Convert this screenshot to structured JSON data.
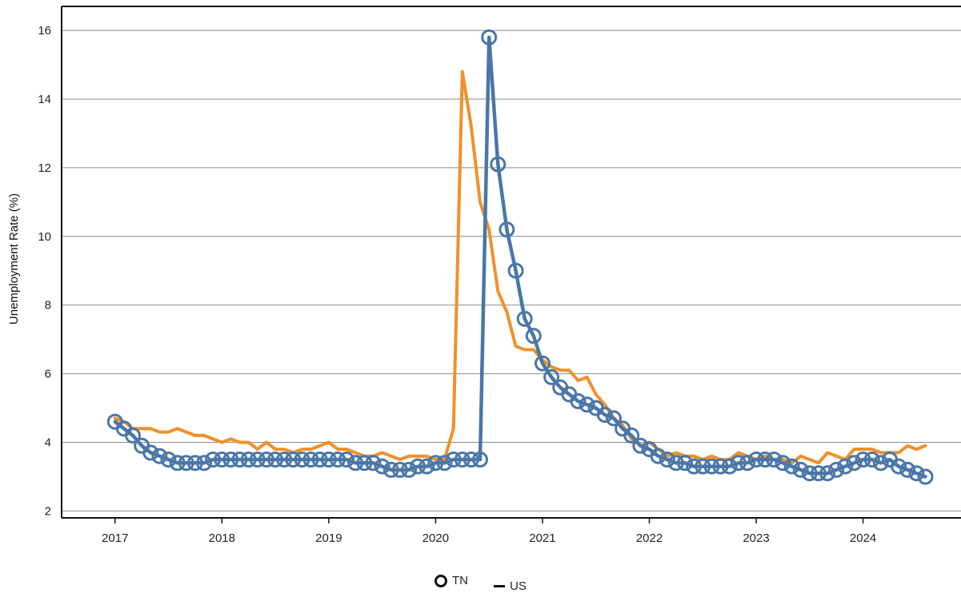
{
  "chart_data": {
    "type": "line",
    "title": "",
    "xlabel": "",
    "ylabel": "Unemployment Rate (%)",
    "ylim": [
      1.8,
      16.7
    ],
    "yticks": [
      2,
      4,
      6,
      8,
      10,
      12,
      14,
      16
    ],
    "x_tick_labels": [
      "2017",
      "2018",
      "2019",
      "2020",
      "2021",
      "2022",
      "2023",
      "2024"
    ],
    "x_range": [
      "2016-07",
      "2024-12"
    ],
    "grid": "horizontal",
    "legend_position": "bottom",
    "legend": [
      "TN",
      "US"
    ],
    "x_start": "2017-01",
    "x_step": "month",
    "series": [
      {
        "name": "TN",
        "color": "#4a76a8",
        "marker": "circle",
        "values": [
          4.6,
          4.4,
          4.2,
          3.9,
          3.7,
          3.6,
          3.5,
          3.4,
          3.4,
          3.4,
          3.4,
          3.5,
          3.5,
          3.5,
          3.5,
          3.5,
          3.5,
          3.5,
          3.5,
          3.5,
          3.5,
          3.5,
          3.5,
          3.5,
          3.5,
          3.5,
          3.5,
          3.4,
          3.4,
          3.4,
          3.3,
          3.2,
          3.2,
          3.2,
          3.3,
          3.3,
          3.4,
          3.4,
          3.5,
          3.5,
          3.5,
          3.5,
          15.8,
          12.1,
          10.2,
          9.0,
          7.6,
          7.1,
          6.3,
          5.9,
          5.6,
          5.4,
          5.2,
          5.1,
          5.0,
          4.8,
          4.7,
          4.4,
          4.2,
          3.9,
          3.8,
          3.6,
          3.5,
          3.4,
          3.4,
          3.3,
          3.3,
          3.3,
          3.3,
          3.3,
          3.4,
          3.4,
          3.5,
          3.5,
          3.5,
          3.4,
          3.3,
          3.2,
          3.1,
          3.1,
          3.1,
          3.2,
          3.3,
          3.4,
          3.5,
          3.5,
          3.4,
          3.5,
          3.3,
          3.2,
          3.1,
          3.0
        ]
      },
      {
        "name": "US",
        "color": "#f0902a",
        "marker": "none",
        "values": [
          4.7,
          4.6,
          4.4,
          4.4,
          4.4,
          4.3,
          4.3,
          4.4,
          4.3,
          4.2,
          4.2,
          4.1,
          4.0,
          4.1,
          4.0,
          4.0,
          3.8,
          4.0,
          3.8,
          3.8,
          3.7,
          3.8,
          3.8,
          3.9,
          4.0,
          3.8,
          3.8,
          3.7,
          3.6,
          3.6,
          3.7,
          3.6,
          3.5,
          3.6,
          3.6,
          3.6,
          3.5,
          3.5,
          4.4,
          14.8,
          13.2,
          11.0,
          10.2,
          8.4,
          7.8,
          6.8,
          6.7,
          6.7,
          6.4,
          6.2,
          6.1,
          6.1,
          5.8,
          5.9,
          5.4,
          5.1,
          4.7,
          4.5,
          4.1,
          3.9,
          4.0,
          3.8,
          3.6,
          3.7,
          3.6,
          3.6,
          3.5,
          3.6,
          3.5,
          3.5,
          3.7,
          3.6,
          3.5,
          3.6,
          3.5,
          3.5,
          3.4,
          3.6,
          3.5,
          3.4,
          3.7,
          3.6,
          3.5,
          3.8,
          3.8,
          3.8,
          3.7,
          3.7,
          3.7,
          3.9,
          3.8,
          3.9
        ]
      }
    ]
  }
}
